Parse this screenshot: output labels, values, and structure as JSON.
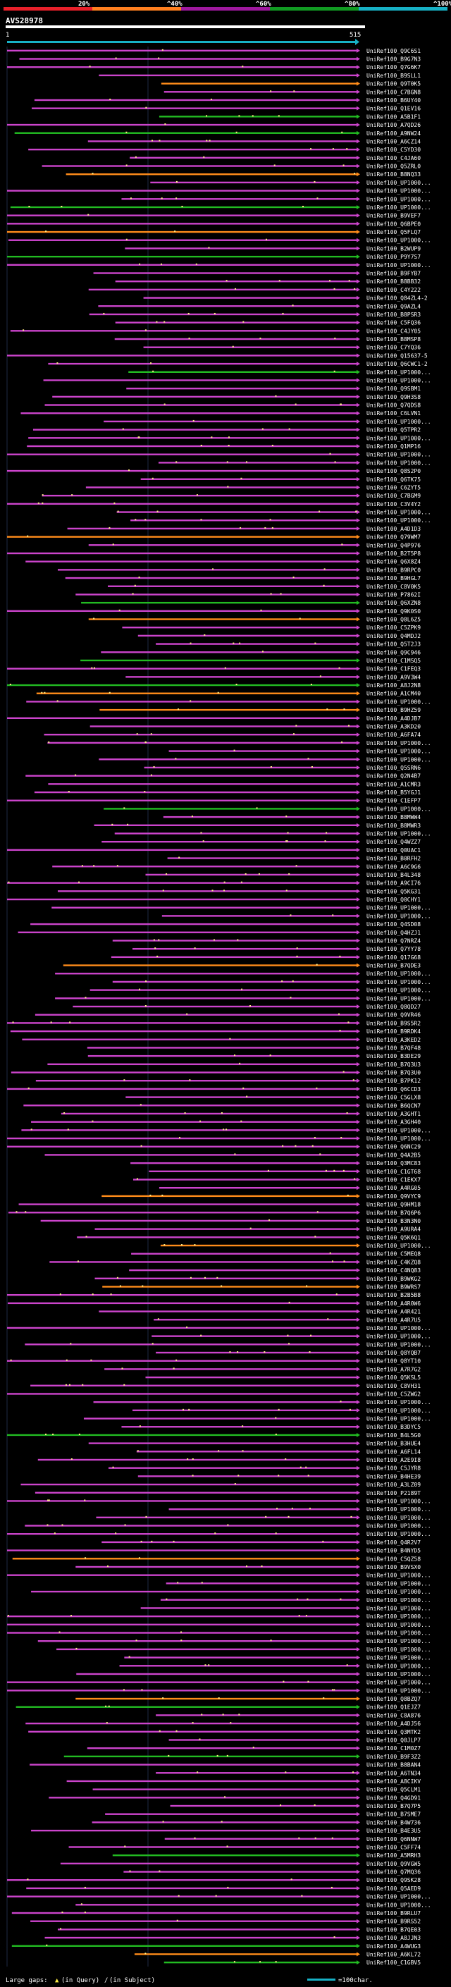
{
  "chart_data": {
    "type": "bar",
    "title": "AVS28978",
    "scale": {
      "ticks": [
        "20%",
        "^40%",
        "^60%",
        "^80%",
        "^100%"
      ],
      "colors": [
        "#e8202a",
        "#ff7f1f",
        "#a0199f",
        "#119b22",
        "#17b1c6"
      ]
    },
    "query_start": "1",
    "query_end": "515",
    "query_color": "#17b1c6",
    "identity_colors": {
      "low": "#ff8c1a",
      "mid": "#cc44cc",
      "high": "#22bb22"
    },
    "xlim": [
      1,
      515
    ],
    "hit_ids": [
      "UniRef100_Q9C6S1",
      "UniRef100_B9G7N3",
      "UniRef100_Q7G6K7",
      "UniRef100_B9SLL1",
      "UniRef100_Q9T0K5",
      "UniRef100_C7BGN8",
      "UniRef100_B6UY40",
      "UniRef100_Q1EV16",
      "UniRef100_A5B1F1",
      "UniRef100_A7QD26",
      "UniRef100_A9NW24",
      "UniRef100_A6CZ14",
      "UniRef100_C5YD30",
      "UniRef100_C4JA60",
      "UniRef100_Q5ZRL0",
      "UniRef100_B8NQ33",
      "UniRef100_UP1000...",
      "UniRef100_UP1000...",
      "UniRef100_UP1000...",
      "UniRef100_UP1000...",
      "UniRef100_B9VEF7",
      "UniRef100_Q6BPE0",
      "UniRef100_Q5FLQ7",
      "UniRef100_UP1000...",
      "UniRef100_B2WUP9",
      "UniRef100_P9Y7S7",
      "UniRef100_UP1000...",
      "UniRef100_B9FYB7",
      "UniRef100_B8BB32",
      "UniRef100_C4Y222",
      "UniRef100_Q84ZL4-2",
      "UniRef100_Q9AZL4",
      "UniRef100_B8PSR3",
      "UniRef100_C5FQ36",
      "UniRef100_C4JY05",
      "UniRef100_B8MSP8",
      "UniRef100_C7YQ36",
      "UniRef100_Q15637-5",
      "UniRef100_Q6CWC1-2",
      "UniRef100_UP1000...",
      "UniRef100_UP1000...",
      "UniRef100_Q9SBM1",
      "UniRef100_Q9H3S8",
      "UniRef100_Q7QDS8",
      "UniRef100_C6LVN1",
      "UniRef100_UP1000...",
      "UniRef100_Q5TPR2",
      "UniRef100_UP1000...",
      "UniRef100_Q1MP16",
      "UniRef100_UP1000...",
      "UniRef100_UP1000...",
      "UniRef100_Q8S2P0",
      "UniRef100_Q6TK75",
      "UniRef100_C6ZYT5",
      "UniRef100_C7BGM9",
      "UniRef100_C3V4Y2",
      "UniRef100_UP1000...",
      "UniRef100_UP1000...",
      "UniRef100_A4D1D3",
      "UniRef100_Q79WM7",
      "UniRef100_Q4P976",
      "UniRef100_B2T5P8",
      "UniRef100_Q6X8Z4",
      "UniRef100_B9RPC0",
      "UniRef100_B9HGL7",
      "UniRef100_C8V0K5",
      "UniRef100_P7862I",
      "UniRef100_Q6XZN8",
      "UniRef100_Q9K0S0",
      "UniRef100_Q8L6Z5",
      "UniRef100_C5ZPK9",
      "UniRef100_Q4MDJ2",
      "UniRef100_Q5T2J3",
      "UniRef100_Q9C946",
      "UniRef100_C1MSQ5",
      "UniRef100_C1FEQ3",
      "UniRef100_A9V3W4",
      "UniRef100_A8J2N8",
      "UniRef100_A1CM40",
      "UniRef100_UP1000...",
      "UniRef100_B9HZ59",
      "UniRef100_A4DJB7",
      "UniRef100_A3KD20",
      "UniRef100_A6FA74",
      "UniRef100_UP1000...",
      "UniRef100_UP1000...",
      "UniRef100_UP1000...",
      "UniRef100_Q5SRN6",
      "UniRef100_Q2N4B7",
      "UniRef100_A1CMR3",
      "UniRef100_B5YGJ1",
      "UniRef100_C1EFP7",
      "UniRef100_UP1000...",
      "UniRef100_B8MWW4",
      "UniRef100_B8MWR3",
      "UniRef100_UP1000...",
      "UniRef100_Q4WZZ7",
      "UniRef100_Q0UAC1",
      "UniRef100_B0RFH2",
      "UniRef100_A6C9G6",
      "UniRef100_B4L348",
      "UniRef100_A9CI76",
      "UniRef100_Q5KG31",
      "UniRef100_Q0CHY1",
      "UniRef100_UP1000...",
      "UniRef100_UP1000...",
      "UniRef100_Q4SD08",
      "UniRef100_Q4HZJ1",
      "UniRef100_Q7NRZ4",
      "UniRef100_Q7YY78",
      "UniRef100_Q17G68",
      "UniRef100_B7QDE3",
      "UniRef100_UP1000...",
      "UniRef100_UP1000...",
      "UniRef100_UP1000...",
      "UniRef100_UP1000...",
      "UniRef100_Q8QD27",
      "UniRef100_Q9VR46",
      "UniRef100_B9S5R2",
      "UniRef100_B9RDK4",
      "UniRef100_A3KED2",
      "UniRef100_B7QF48",
      "UniRef100_B3DE29",
      "UniRef100_B7Q3U3",
      "UniRef100_B7Q3U0",
      "UniRef100_B7PK12",
      "UniRef100_Q6CCD3",
      "UniRef100_C5GLX8",
      "UniRef100_B6QCN7",
      "UniRef100_A3GHT1",
      "UniRef100_A3GH40",
      "UniRef100_UP1000...",
      "UniRef100_UP1000...",
      "UniRef100_Q6NC29",
      "UniRef100_Q4A2B5",
      "UniRef100_Q3MC83",
      "UniRef100_C1GT68",
      "UniRef100_C1EKX7",
      "UniRef100_A4RG05",
      "UniRef100_Q9VYC9",
      "UniRef100_Q9HM18",
      "UniRef100_B7Q6P6",
      "UniRef100_B3N3N0",
      "UniRef100_A9URA4",
      "UniRef100_Q5K6Q1",
      "UniRef100_UP1000...",
      "UniRef100_C5MEQ8",
      "UniRef100_C4KZQ8",
      "UniRef100_C4NQ83",
      "UniRef100_B9WKG2",
      "UniRef100_B9WRS7",
      "UniRef100_B2B5B8",
      "UniRef100_A4R0W6",
      "UniRef100_A4R421",
      "UniRef100_A4R7U5",
      "UniRef100_UP1000...",
      "UniRef100_UP1000...",
      "UniRef100_UP1000...",
      "UniRef100_Q8YQB7",
      "UniRef100_Q8YT10",
      "UniRef100_A7R7G2",
      "UniRef100_Q5KSL5",
      "UniRef100_C8VH31",
      "UniRef100_C5ZWG2",
      "UniRef100_UP1000...",
      "UniRef100_UP1000...",
      "UniRef100_UP1000...",
      "UniRef100_B3DYC5",
      "UniRef100_B4L5G0",
      "UniRef100_B3HUE4",
      "UniRef100_A6FL14",
      "UniRef100_A2E9I8",
      "UniRef100_C5JYR8",
      "UniRef100_B4HE39",
      "UniRef100_A3LZ09",
      "UniRef100_P2189T",
      "UniRef100_UP1000...",
      "UniRef100_UP1000...",
      "UniRef100_UP1000...",
      "UniRef100_UP1000...",
      "UniRef100_UP1000...",
      "UniRef100_Q4R2V7",
      "UniRef100_B4NYD5",
      "UniRef100_C5QZ58",
      "UniRef100_B9VSX0",
      "UniRef100_UP1000...",
      "UniRef100_UP1000...",
      "UniRef100_UP1000...",
      "UniRef100_UP1000...",
      "UniRef100_UP1000...",
      "UniRef100_UP1000...",
      "UniRef100_UP1000...",
      "UniRef100_UP1000...",
      "UniRef100_UP1000...",
      "UniRef100_UP1000...",
      "UniRef100_UP1000...",
      "UniRef100_UP1000...",
      "UniRef100_UP1000...",
      "UniRef100_UP1000...",
      "UniRef100_UP1000...",
      "UniRef100_Q8BZQ7",
      "UniRef100_Q1EJZ7",
      "UniRef100_C8A876",
      "UniRef100_A4DJ56",
      "UniRef100_Q3MTK2",
      "UniRef100_Q0JLP7",
      "UniRef100_C1M0Z7",
      "UniRef100_B9F3Z2",
      "UniRef100_B8BAN4",
      "UniRef100_A6TN34",
      "UniRef100_A8CIKV",
      "UniRef100_Q5CLM1",
      "UniRef100_Q4GD91",
      "UniRef100_B7Q7P5",
      "UniRef100_B7SME7",
      "UniRef100_B4W736",
      "UniRef100_B4E3U5",
      "UniRef100_Q6NNW7",
      "UniRef100_C5FF74",
      "UniRef100_A5MRH3",
      "UniRef100_Q9VGW5",
      "UniRef100_Q7MQ36",
      "UniRef100_Q9SK28",
      "UniRef100_Q5AED9",
      "UniRef100_UP1000...",
      "UniRef100_UP1000...",
      "UniRef100_B9RLU7",
      "UniRef100_B9RS52",
      "UniRef100_B7QE03",
      "UniRef100_A8JJN3",
      "UniRef100_A4WUG3",
      "UniRef100_A6KL72",
      "UniRef100_C1GBV5"
    ],
    "legend": {
      "large_gaps_label": "Large gaps:",
      "in_query_label": "(in Query)",
      "in_subject_label": "(in Subject)",
      "scale_label": "=100char."
    }
  }
}
